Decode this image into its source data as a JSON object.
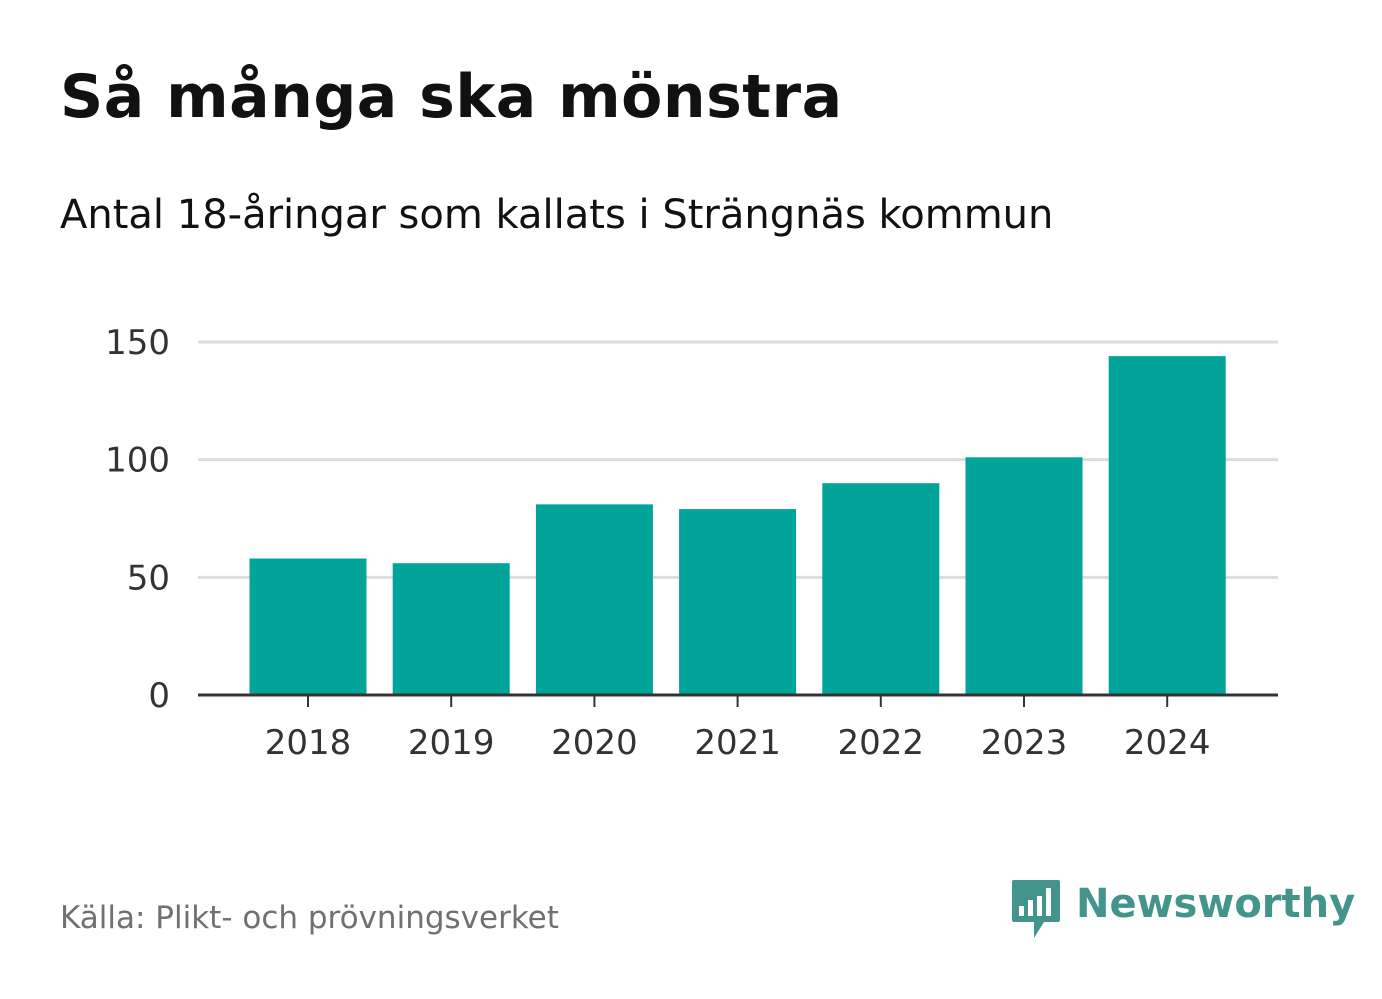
{
  "header": {
    "title": "Så många ska mönstra",
    "subtitle": "Antal 18-åringar som kallats i Strängnäs kommun"
  },
  "footer": {
    "source": "Källa: Plikt- och prövningsverket",
    "brand": "Newsworthy",
    "brand_icon": "bar-chart-speech-bubble-icon"
  },
  "colors": {
    "bar": "#00a499",
    "grid": "#dddddd",
    "axis": "#333333",
    "brand": "#43958b"
  },
  "chart_data": {
    "type": "bar",
    "title": "Så många ska mönstra",
    "subtitle": "Antal 18-åringar som kallats i Strängnäs kommun",
    "xlabel": "",
    "ylabel": "",
    "categories": [
      "2018",
      "2019",
      "2020",
      "2021",
      "2022",
      "2023",
      "2024"
    ],
    "values": [
      58,
      56,
      81,
      79,
      90,
      101,
      144
    ],
    "ylim": [
      0,
      150
    ],
    "yticks": [
      0,
      50,
      100,
      150
    ],
    "ytick_labels": [
      "0",
      "50",
      "100",
      "150"
    ],
    "grid": true,
    "legend": "none"
  }
}
